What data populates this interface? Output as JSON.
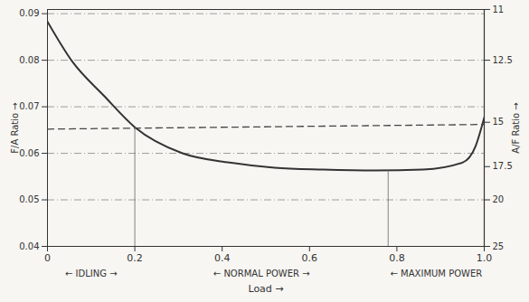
{
  "chart_data": {
    "type": "line",
    "xlabel": "Load →",
    "ylabel": "F/A Ratio →",
    "y2label": "A/F Ratio →",
    "xlim": [
      0,
      1
    ],
    "xticks": [
      0,
      0.2,
      0.4,
      0.6,
      0.8,
      {
        "value": 1,
        "label": "1.0"
      }
    ],
    "ylim": [
      0.04,
      0.0909
    ],
    "yticks": [
      0.04,
      0.05,
      0.06,
      0.07,
      0.08,
      0.09
    ],
    "y2lim": [
      25,
      11
    ],
    "y2ticks": [
      11,
      12.5,
      15,
      17.5,
      20,
      25
    ],
    "grid": true,
    "color": "#333333",
    "series": [
      {
        "x": [
          0,
          0.057,
          0.129,
          0.2,
          0.309,
          0.417,
          0.52,
          0.63,
          0.75,
          0.86,
          0.95,
          0.98,
          1.0
        ],
        "values": [
          0.0883,
          0.0797,
          0.0724,
          0.0656,
          0.06,
          0.058,
          0.0569,
          0.0565,
          0.0563,
          0.0565,
          0.058,
          0.0615,
          0.0677
        ],
        "line_style": "solid",
        "color": "#333333"
      },
      {
        "x": [
          0,
          1
        ],
        "values": [
          0.0652,
          0.0662
        ],
        "line_style": "dashed",
        "color": "#444444"
      }
    ],
    "regions": [
      {
        "label": "← IDLING →",
        "from": 0,
        "to": 0.2
      },
      {
        "label": "← NORMAL POWER →",
        "from": 0.2,
        "to": 0.78
      },
      {
        "label": "← MAXIMUM POWER",
        "from": 0.78,
        "to": 1.0
      }
    ]
  }
}
